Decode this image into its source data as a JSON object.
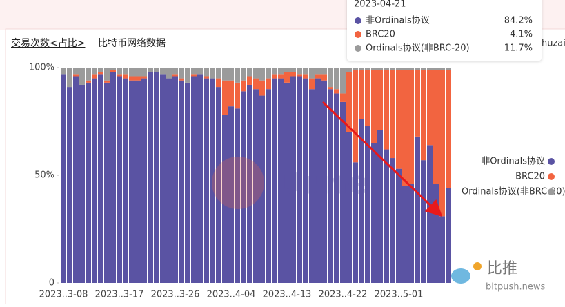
{
  "header": {
    "title": "交易次数<占比>",
    "subtitle": "比特币网络数据",
    "user": "huzai"
  },
  "watermark": {
    "dune": "Dune",
    "brand": "比推",
    "site": "bitpush.news"
  },
  "tooltip": {
    "date": "2023-04-21",
    "rows": [
      {
        "name": "非Ordinals协议",
        "value": 84.2,
        "value_label": "84.2%",
        "color": "#5a53a3"
      },
      {
        "name": "BRC20",
        "value": 4.1,
        "value_label": "4.1%",
        "color": "#f26440"
      },
      {
        "name": "Ordinals协议(非BRC-20)",
        "value": 11.7,
        "value_label": "11.7%",
        "color": "#9b9b9b"
      }
    ]
  },
  "chart_data": {
    "type": "stacked_bar",
    "categories": [
      "2023..3-08",
      null,
      null,
      null,
      null,
      null,
      null,
      null,
      null,
      "2023..3-17",
      null,
      null,
      null,
      null,
      null,
      null,
      null,
      null,
      "2023..3-26",
      null,
      null,
      null,
      null,
      null,
      null,
      null,
      null,
      "2023..4-04",
      null,
      null,
      null,
      null,
      null,
      null,
      null,
      null,
      "2023..4-13",
      null,
      null,
      null,
      null,
      null,
      null,
      null,
      null,
      "2023..4-22",
      null,
      null,
      null,
      null,
      null,
      null,
      null,
      null,
      "2023..5-01",
      null,
      null,
      null,
      null,
      null,
      null,
      null,
      null
    ],
    "ylim": [
      0,
      100
    ],
    "yticks": [
      0,
      {
        "value": 50,
        "label": "50%"
      },
      {
        "value": 100,
        "label": "100%"
      }
    ],
    "legend": "right",
    "series": [
      {
        "name": "非Ordinals协议",
        "color": "#5a53a3",
        "values": [
          97,
          91,
          96,
          92,
          93,
          95,
          97,
          93,
          98,
          96,
          95,
          94,
          94,
          95,
          98,
          98,
          97,
          95,
          96,
          94,
          93,
          96,
          97,
          95,
          95,
          91,
          78,
          82,
          81,
          89,
          92,
          90,
          87,
          90,
          95,
          95,
          93,
          96,
          96,
          95,
          90,
          95,
          94,
          90,
          88,
          84,
          70,
          56,
          76,
          73,
          65,
          71,
          62,
          58,
          53,
          45,
          46,
          68,
          57,
          64,
          46,
          31,
          44
        ]
      },
      {
        "name": "BRC20",
        "color": "#f26440",
        "values": [
          0,
          0,
          1,
          0,
          1,
          2,
          1,
          1,
          1,
          1,
          2,
          2,
          2,
          1,
          0,
          0,
          0,
          0,
          1,
          1,
          0,
          1,
          0,
          1,
          0,
          4,
          16,
          12,
          12,
          5,
          4,
          5,
          7,
          5,
          2,
          2,
          5,
          2,
          1,
          2,
          5,
          2,
          3,
          1,
          2,
          4,
          28,
          43,
          23,
          26,
          34,
          28,
          37,
          41,
          46,
          54,
          53,
          31,
          42,
          35,
          53,
          68,
          55
        ]
      },
      {
        "name": "Ordinals协议(非BRC-20)",
        "color": "#9b9b9b",
        "values": [
          3,
          9,
          3,
          8,
          6,
          3,
          2,
          6,
          1,
          3,
          3,
          4,
          4,
          4,
          2,
          2,
          3,
          5,
          3,
          5,
          7,
          3,
          3,
          4,
          5,
          5,
          6,
          6,
          7,
          6,
          4,
          5,
          6,
          5,
          3,
          3,
          2,
          2,
          3,
          3,
          5,
          3,
          3,
          9,
          10,
          12,
          2,
          1,
          1,
          1,
          1,
          1,
          1,
          1,
          1,
          1,
          1,
          1,
          1,
          1,
          1,
          1,
          1
        ]
      }
    ]
  }
}
